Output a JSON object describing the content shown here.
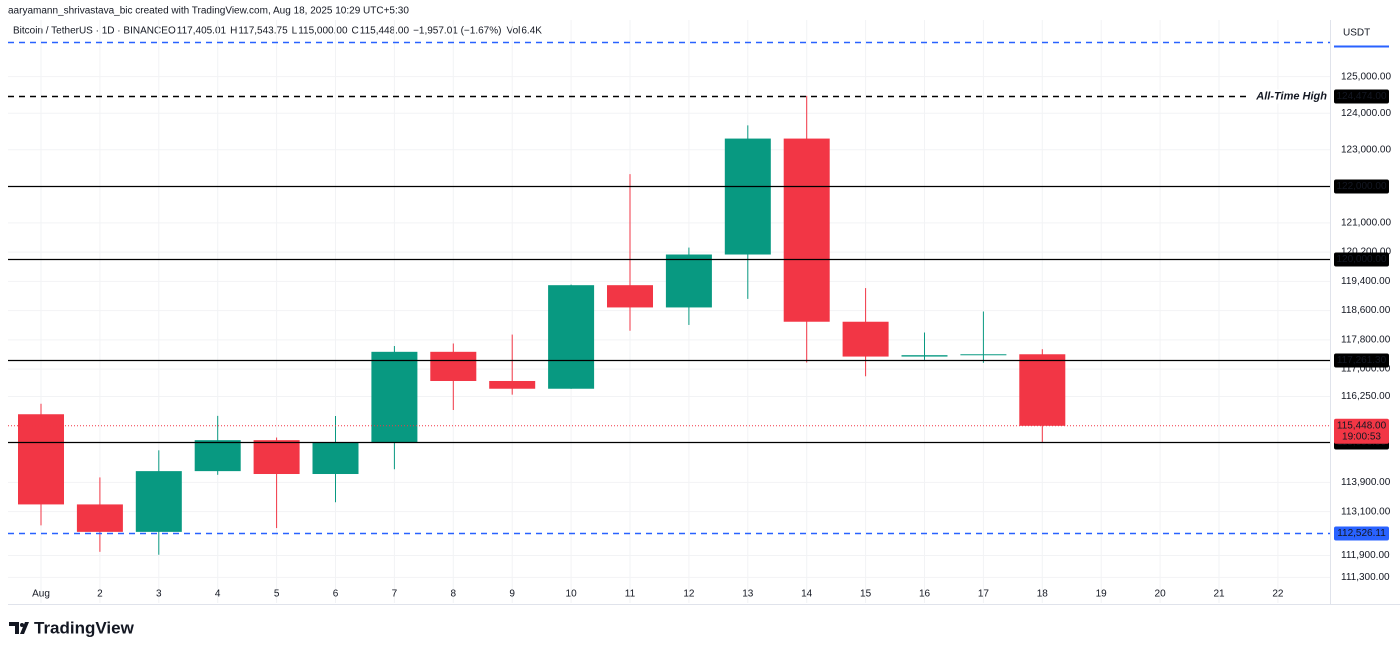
{
  "chart_data": {
    "type": "candlestick",
    "attribution": "aaryamann_shrivastava_bic created with TradingView.com, Aug 18, 2025 10:29 UTC+5:30",
    "symbol": "Bitcoin / TetherUS · 1D · BINANCE",
    "legend": [
      {
        "key": "O",
        "value": "117,405.01"
      },
      {
        "key": "H",
        "value": "117,543.75"
      },
      {
        "key": "L",
        "value": "115,000.00"
      },
      {
        "key": "C",
        "value": "115,448.00"
      }
    ],
    "change": "−1,957.01 (−1.67%)",
    "volume": {
      "key": "Vol",
      "value": "6.4K"
    },
    "currency": "USDT",
    "brand": "TradingView",
    "categories": [
      "Aug",
      "2",
      "3",
      "4",
      "5",
      "6",
      "7",
      "8",
      "9",
      "10",
      "11",
      "12",
      "13",
      "14",
      "15",
      "16",
      "17",
      "18",
      "19",
      "20",
      "21",
      "22"
    ],
    "open": [
      115764,
      113297,
      112546,
      114208,
      115055,
      114129,
      114992,
      117472,
      116674,
      116462,
      119295,
      118686,
      120134,
      123306,
      118295,
      117342,
      117380,
      117405.01,
      null,
      null,
      null,
      null
    ],
    "high": [
      116052,
      114036,
      114777,
      115720,
      115127,
      115716,
      117630,
      117700,
      117944,
      119311,
      122335,
      120324,
      123667,
      124474,
      119216,
      117999,
      118575,
      117543.75,
      null,
      null,
      null,
      null
    ],
    "low": [
      112722,
      112000,
      111920,
      114107,
      112650,
      113356,
      114259,
      115880,
      116300,
      116460,
      118050,
      118207,
      118920,
      117180,
      116803,
      117250,
      117172,
      115000,
      null,
      null,
      null,
      null
    ],
    "close": [
      113297,
      112546,
      114208,
      115055,
      114129,
      114992,
      117472,
      116674,
      116462,
      119295,
      118686,
      120134,
      123306,
      118295,
      117342,
      117380,
      117405,
      115448,
      null,
      null,
      null,
      null
    ],
    "up_color": "#089981",
    "down_color": "#f23645",
    "ylim": [
      110600,
      126550
    ],
    "yticks": [
      {
        "value": 125000,
        "label": "125,000.00"
      },
      {
        "value": 124000,
        "label": "124,000.00"
      },
      {
        "value": 123000,
        "label": "123,000.00"
      },
      {
        "value": 121000,
        "label": "121,000.00"
      },
      {
        "value": 120200,
        "label": "120,200.00"
      },
      {
        "value": 119400,
        "label": "119,400.00"
      },
      {
        "value": 118600,
        "label": "118,600.00"
      },
      {
        "value": 117800,
        "label": "117,800.00"
      },
      {
        "value": 117000,
        "label": "117,000.00"
      },
      {
        "value": 116250,
        "label": "116,250.00"
      },
      {
        "value": 113900,
        "label": "113,900.00"
      },
      {
        "value": 113100,
        "label": "113,100.00"
      },
      {
        "value": 111900,
        "label": "111,900.00"
      },
      {
        "value": 111300,
        "label": "111,300.00"
      }
    ],
    "grid": true,
    "levels": [
      {
        "value": 125950,
        "color": "#2962ff",
        "style": "dashed"
      },
      {
        "value": 124474,
        "label": "124,474.00",
        "color": "#000000",
        "style": "dashed",
        "annotation": "All-Time High"
      },
      {
        "value": 122000,
        "label": "122,000.00",
        "color": "#000000",
        "style": "solid"
      },
      {
        "value": 120000,
        "label": "120,000.00",
        "color": "#000000",
        "style": "solid"
      },
      {
        "value": 117261.3,
        "label": "117,261.30",
        "color": "#000000",
        "style": "solid"
      },
      {
        "value": 115000,
        "label": "115,000.00",
        "color": "#000000",
        "style": "solid"
      },
      {
        "value": 112526.11,
        "label": "112,526.11",
        "color": "#2962ff",
        "style": "dashed"
      }
    ],
    "last_price": {
      "value": 115448,
      "label": "115,448.00",
      "countdown": "19:00:53",
      "color": "#f23645"
    }
  }
}
